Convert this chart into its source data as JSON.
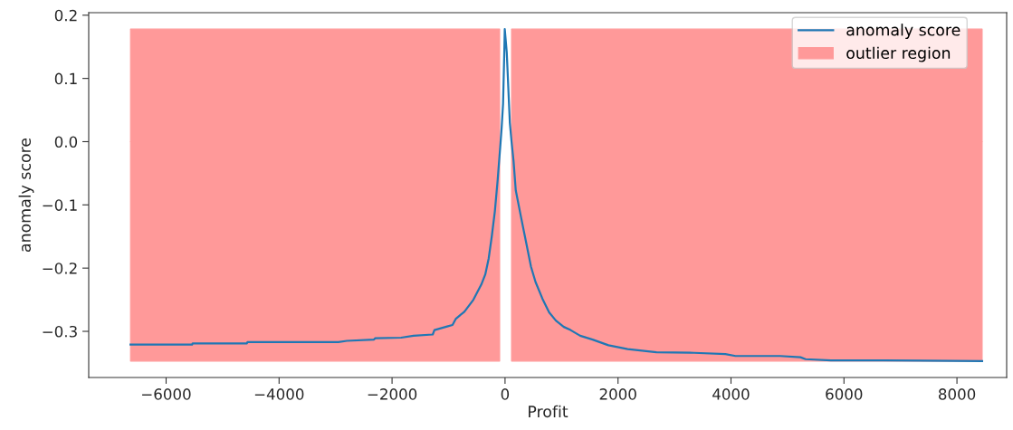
{
  "chart_data": {
    "type": "line",
    "xlabel": "Profit",
    "ylabel": "anomaly score",
    "series": [
      {
        "name": "outlier region",
        "type": "area",
        "color": "#ff9999",
        "x": [
          -6630,
          -95
        ],
        "values": [
          0.178,
          0.178
        ]
      },
      {
        "type": "area",
        "color": "#ff9999",
        "x": [
          -6630,
          -95
        ],
        "values": [
          -0.347,
          -0.347
        ]
      },
      {
        "type": "area",
        "color": "#ff9999",
        "x": [
          115,
          8446
        ],
        "values": [
          0.178,
          0.178
        ]
      },
      {
        "type": "area",
        "color": "#ff9999",
        "x": [
          115,
          8446
        ],
        "values": [
          -0.347,
          -0.347
        ]
      },
      {
        "name": "anomaly score",
        "color": "#1f77b4",
        "x": [
          -6630,
          -5540,
          -5530,
          -4570,
          -4560,
          -2950,
          -2800,
          -2320,
          -2300,
          -1840,
          -1620,
          -1280,
          -1250,
          -1010,
          -930,
          -870,
          -720,
          -560,
          -420,
          -350,
          -290,
          -235,
          -180,
          -130,
          -85,
          -60,
          -35,
          -15,
          -5,
          30,
          85,
          115,
          150,
          190,
          280,
          370,
          460,
          540,
          660,
          780,
          900,
          1040,
          1160,
          1330,
          1550,
          1830,
          2170,
          2680,
          3350,
          3900,
          4080,
          4870,
          5230,
          5320,
          5770,
          6700,
          8446
        ],
        "values": [
          -0.321,
          -0.321,
          -0.319,
          -0.319,
          -0.317,
          -0.317,
          -0.315,
          -0.313,
          -0.311,
          -0.31,
          -0.307,
          -0.305,
          -0.298,
          -0.292,
          -0.29,
          -0.28,
          -0.269,
          -0.25,
          -0.226,
          -0.21,
          -0.185,
          -0.15,
          -0.11,
          -0.06,
          -0.008,
          0.022,
          0.06,
          0.135,
          0.178,
          0.142,
          0.03,
          0.0,
          -0.03,
          -0.077,
          -0.118,
          -0.158,
          -0.198,
          -0.222,
          -0.248,
          -0.27,
          -0.283,
          -0.293,
          -0.298,
          -0.307,
          -0.313,
          -0.322,
          -0.328,
          -0.333,
          -0.334,
          -0.336,
          -0.339,
          -0.339,
          -0.341,
          -0.344,
          -0.346,
          -0.346,
          -0.347
        ]
      }
    ],
    "xlim": [
      -7370,
      8880
    ],
    "ylim": [
      -0.373,
      0.204
    ],
    "xticks": [
      {
        "value": -6000,
        "label": "−6000"
      },
      {
        "value": -4000,
        "label": "−4000"
      },
      {
        "value": -2000,
        "label": "−2000"
      },
      0,
      2000,
      4000,
      6000,
      8000
    ],
    "yticks": [
      {
        "value": -0.3,
        "label": "−0.3"
      },
      {
        "value": -0.2,
        "label": "−0.2"
      },
      {
        "value": -0.1,
        "label": "−0.1"
      },
      {
        "value": 0,
        "label": "0.0"
      },
      0.1,
      0.2
    ],
    "grid": false,
    "legend": "top right",
    "marker": "none",
    "line_style": "solid"
  }
}
